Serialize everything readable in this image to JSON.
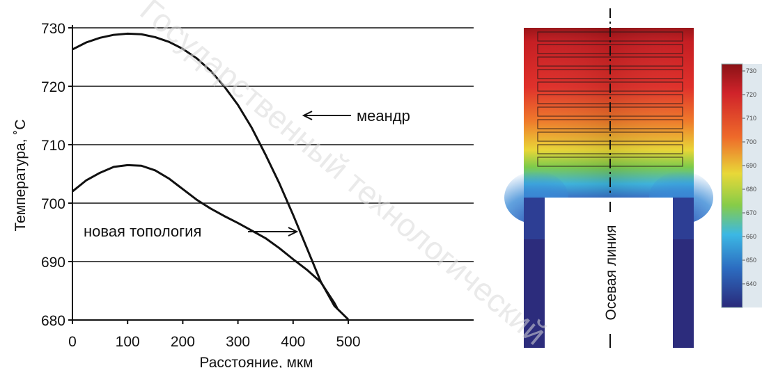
{
  "chart_data": {
    "type": "line",
    "xlabel": "Расстояние, мкм",
    "ylabel": "Температура, ˚С",
    "xlim": [
      0,
      500
    ],
    "ylim": [
      680,
      730
    ],
    "x_ticks": [
      "0",
      "100",
      "200",
      "300",
      "400",
      "500"
    ],
    "y_ticks": [
      "680",
      "690",
      "700",
      "710",
      "720",
      "730"
    ],
    "grid": "horizontal",
    "series": [
      {
        "name": "меандр",
        "x": [
          0,
          25,
          50,
          75,
          100,
          125,
          150,
          175,
          200,
          225,
          250,
          275,
          300,
          325,
          350,
          375,
          400,
          425,
          450,
          475,
          500
        ],
        "y": [
          726.3,
          727.5,
          728.3,
          728.8,
          729.0,
          728.9,
          728.4,
          727.6,
          726.4,
          724.8,
          722.7,
          720.0,
          716.8,
          712.9,
          708.3,
          703.4,
          698.0,
          692.3,
          686.6,
          682.4,
          680.1
        ]
      },
      {
        "name": "новая топология",
        "x": [
          0,
          25,
          50,
          75,
          100,
          125,
          150,
          175,
          200,
          225,
          250,
          275,
          300,
          325,
          350,
          375,
          400,
          425,
          450,
          475,
          480
        ],
        "y": [
          702.0,
          703.9,
          705.2,
          706.2,
          706.5,
          706.4,
          705.6,
          704.2,
          702.4,
          700.6,
          699.1,
          697.8,
          696.6,
          695.3,
          694.0,
          692.3,
          690.4,
          688.6,
          686.5,
          682.9,
          682.0
        ]
      }
    ],
    "annotations": [
      "меандр",
      "новая топология"
    ]
  },
  "heatmap": {
    "axis_label": "Осевая линия",
    "colorbar_ticks": [
      "730",
      "720",
      "710",
      "700",
      "690",
      "680",
      "670",
      "660",
      "650",
      "640"
    ],
    "colors": {
      "hot": "#a0151a",
      "red": "#e0252a",
      "orange": "#f08a2a",
      "yellow": "#e6e03a",
      "green": "#6cc64a",
      "cyan": "#3ab8e6",
      "blue": "#2a58b0",
      "navy": "#2c2a7a"
    }
  },
  "watermark": "Государственный технологический"
}
